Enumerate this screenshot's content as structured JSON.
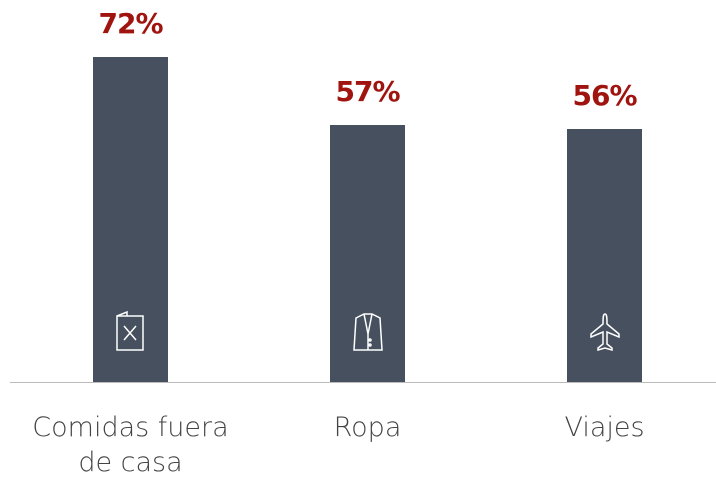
{
  "chart_data": {
    "type": "bar",
    "categories": [
      "Comidas fuera de casa",
      "Ropa",
      "Viajes"
    ],
    "values": [
      72,
      57,
      56
    ],
    "value_labels": [
      "72%",
      "57%",
      "56%"
    ],
    "color": "#46505e"
  }
}
